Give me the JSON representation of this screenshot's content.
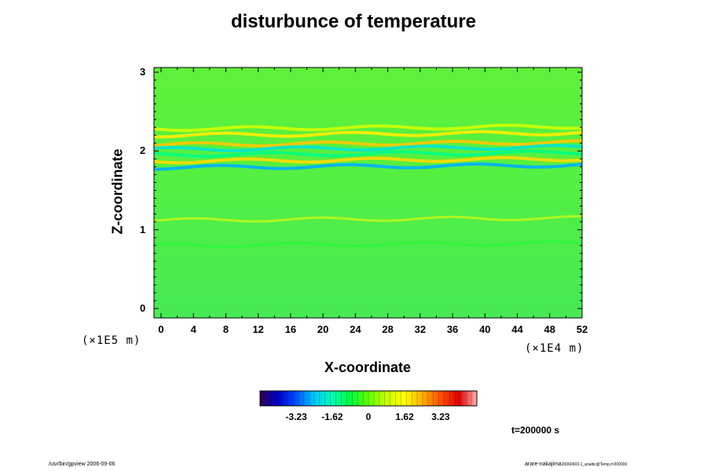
{
  "chart_data": {
    "type": "heatmap",
    "title": "disturbunce of temperature",
    "xlabel": "X-coordinate",
    "ylabel": "Z-coordinate",
    "x_unit": "(×1E4 m)",
    "y_unit": "(×1E5 m)",
    "xlim": [
      0,
      52
    ],
    "ylim": [
      0,
      3
    ],
    "x_ticks": [
      "0",
      "4",
      "8",
      "12",
      "16",
      "20",
      "24",
      "28",
      "32",
      "36",
      "40",
      "44",
      "48",
      "52"
    ],
    "y_ticks": [
      "0",
      "1",
      "2",
      "3"
    ],
    "field_background": 0,
    "features": [
      {
        "z": 2.28,
        "value": 0.9
      },
      {
        "z": 2.2,
        "value": 1.8
      },
      {
        "z": 2.08,
        "value": 2.2
      },
      {
        "z": 2.02,
        "value": -2.0
      },
      {
        "z": 1.95,
        "value": -1.3
      },
      {
        "z": 1.87,
        "value": 2.0
      },
      {
        "z": 1.79,
        "value": -2.6
      },
      {
        "z": 1.12,
        "value": 1.6
      },
      {
        "z": 0.8,
        "value": -0.6
      }
    ],
    "colorbar": {
      "ticks": [
        "-3.23",
        "-1.62",
        "0",
        "1.62",
        "3.23"
      ],
      "range": [
        -4.85,
        4.85
      ],
      "colors": [
        "#2d0055",
        "#0000c8",
        "#0050ff",
        "#00c8ff",
        "#00ffb0",
        "#00ff40",
        "#60ff00",
        "#c8ff00",
        "#ffff00",
        "#ffb000",
        "#ff5000",
        "#e00000",
        "#ffb0b0"
      ]
    },
    "annotation": "t=200000 s"
  },
  "footer": {
    "left": "/usr/bin/gpview 2006-09-06",
    "right_main": "arare-nakajima",
    "right_sub": "20060603-1_analtic@Temp,t=200000"
  }
}
